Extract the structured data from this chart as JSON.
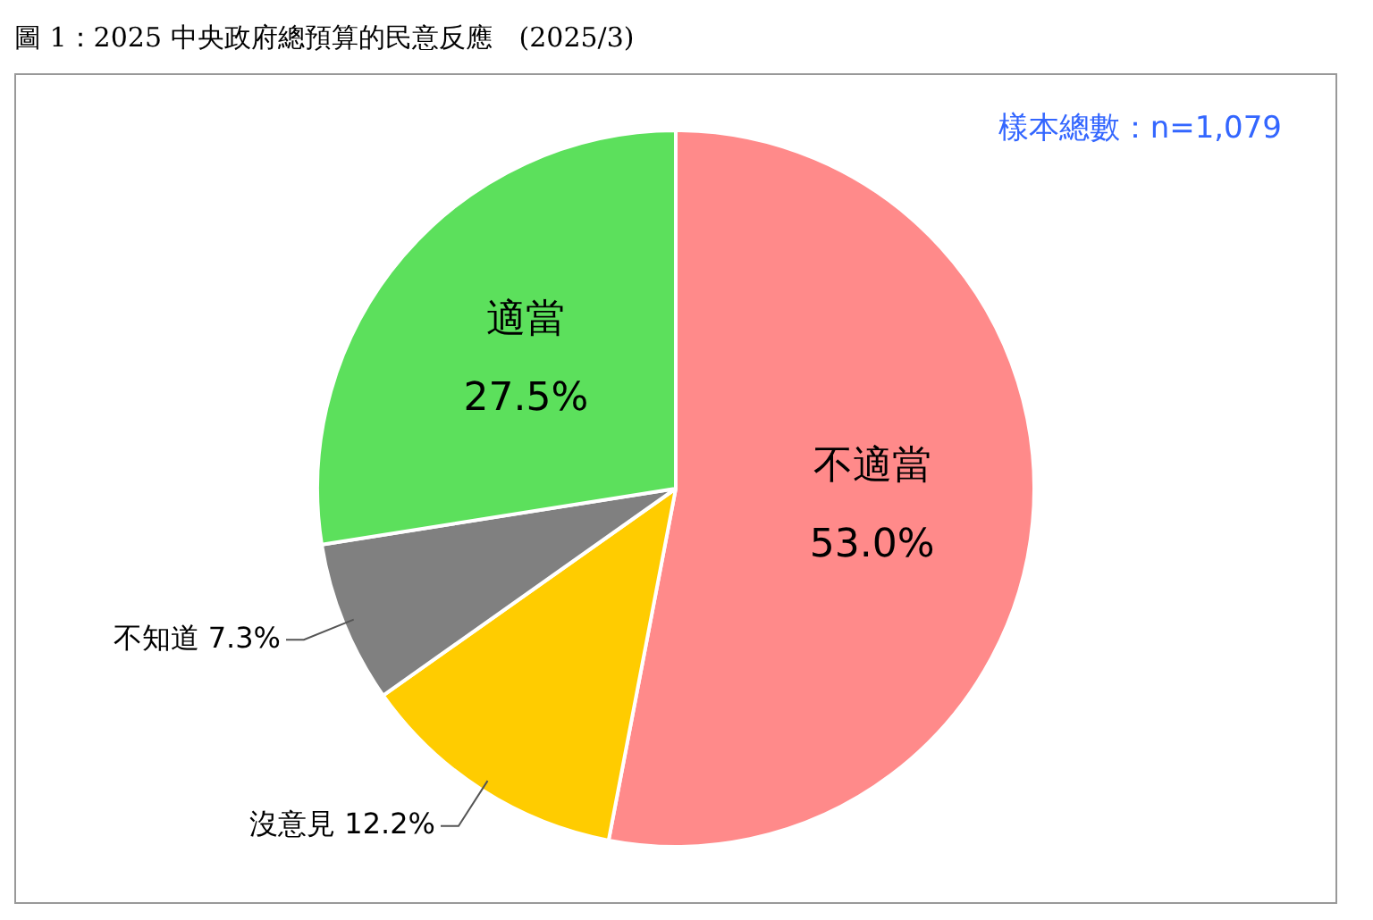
{
  "chart_data": {
    "type": "pie",
    "title": "圖 1：2025 中央政府總預算的民意反應　(2025/3)",
    "annotations": [
      "樣本總數：n=1,079"
    ],
    "categories": [
      "不適當",
      "沒意見",
      "不知道",
      "適當"
    ],
    "values": [
      53.0,
      12.2,
      7.3,
      27.5
    ],
    "colors": [
      "#ff8a8a",
      "#ffcc00",
      "#808080",
      "#5ce05c"
    ],
    "value_labels": [
      "53.0%",
      "12.2%",
      "7.3%",
      "27.5%"
    ],
    "legend": false
  }
}
